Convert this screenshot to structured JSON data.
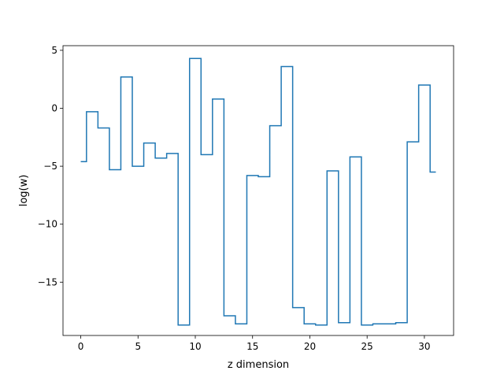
{
  "chart_data": {
    "type": "line",
    "drawstyle": "steps-mid",
    "title": "",
    "xlabel": "z dimension",
    "ylabel": "log(w)",
    "xlim": [
      -1.55,
      32.55
    ],
    "ylim": [
      -19.6,
      5.4
    ],
    "xticks": [
      0,
      5,
      10,
      15,
      20,
      25,
      30
    ],
    "yticks": [
      -15,
      -10,
      -5,
      0,
      5
    ],
    "xtick_labels": [
      "0",
      "5",
      "10",
      "15",
      "20",
      "25",
      "30"
    ],
    "ytick_labels": [
      "−15",
      "−10",
      "−5",
      "0",
      "5"
    ],
    "grid": false,
    "legend": false,
    "line_color": "#1f77b4",
    "x": [
      0,
      1,
      2,
      3,
      4,
      5,
      6,
      7,
      8,
      9,
      10,
      11,
      12,
      13,
      14,
      15,
      16,
      17,
      18,
      19,
      20,
      21,
      22,
      23,
      24,
      25,
      26,
      27,
      28,
      29,
      30,
      31
    ],
    "y": [
      -4.6,
      -0.3,
      -1.7,
      -5.3,
      2.7,
      -5.0,
      -3.0,
      -4.3,
      -3.9,
      -18.7,
      4.3,
      -4.0,
      0.8,
      -17.9,
      -18.6,
      -5.8,
      -5.9,
      -1.5,
      3.6,
      -17.2,
      -18.6,
      -18.7,
      -5.4,
      -18.5,
      -4.2,
      -18.7,
      -18.6,
      -18.6,
      -18.5,
      -2.9,
      2.0,
      -5.5
    ]
  }
}
